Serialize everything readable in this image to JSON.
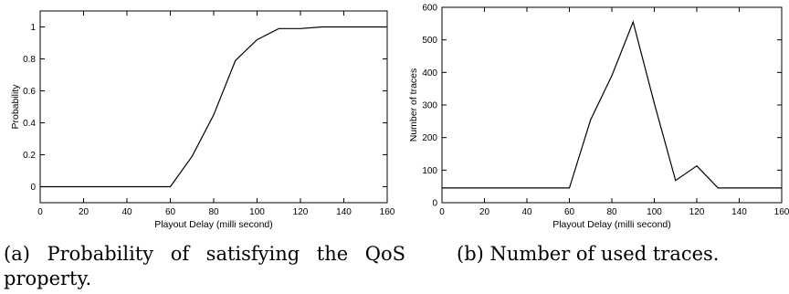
{
  "chart_data": [
    {
      "type": "line",
      "ylabel": "Probability",
      "xlabel": "Playout Delay (milli second)",
      "xlim": [
        0,
        160
      ],
      "ylim": [
        -0.1,
        1.1
      ],
      "xticks": [
        0,
        20,
        40,
        60,
        80,
        100,
        120,
        140,
        160
      ],
      "yticks": [
        0,
        0.2,
        0.4,
        0.6,
        0.8,
        1
      ],
      "ytick_labels": [
        "0",
        "0.2",
        "0.4",
        "0.6",
        "0.8",
        "1"
      ],
      "grid": false,
      "series": [
        {
          "x": [
            0,
            10,
            20,
            30,
            40,
            50,
            60,
            70,
            80,
            90,
            100,
            110,
            120,
            130,
            140,
            150,
            160
          ],
          "y": [
            0,
            0,
            0,
            0,
            0,
            0,
            0,
            0.19,
            0.45,
            0.79,
            0.92,
            0.99,
            0.99,
            1,
            1,
            1,
            1
          ]
        }
      ],
      "caption": "(a) Probability of satisfying the QoS property."
    },
    {
      "type": "line",
      "ylabel": "Number of traces",
      "xlabel": "Playout Delay (milli second)",
      "xlim": [
        0,
        160
      ],
      "ylim": [
        0,
        600
      ],
      "xticks": [
        0,
        20,
        40,
        60,
        80,
        100,
        120,
        140,
        160
      ],
      "yticks": [
        0,
        100,
        200,
        300,
        400,
        500,
        600
      ],
      "ytick_labels": [
        "0",
        "100",
        "200",
        "300",
        "400",
        "500",
        "600"
      ],
      "grid": false,
      "series": [
        {
          "x": [
            0,
            10,
            20,
            30,
            40,
            50,
            60,
            70,
            80,
            90,
            100,
            110,
            120,
            130,
            140,
            150,
            160
          ],
          "y": [
            45,
            45,
            45,
            45,
            45,
            45,
            45,
            255,
            390,
            555,
            305,
            68,
            113,
            45,
            45,
            45,
            45
          ]
        }
      ],
      "caption": "(b) Number of used traces."
    }
  ],
  "colors": {
    "line": "#000000",
    "axes": "#000000",
    "background": "#ffffff"
  }
}
